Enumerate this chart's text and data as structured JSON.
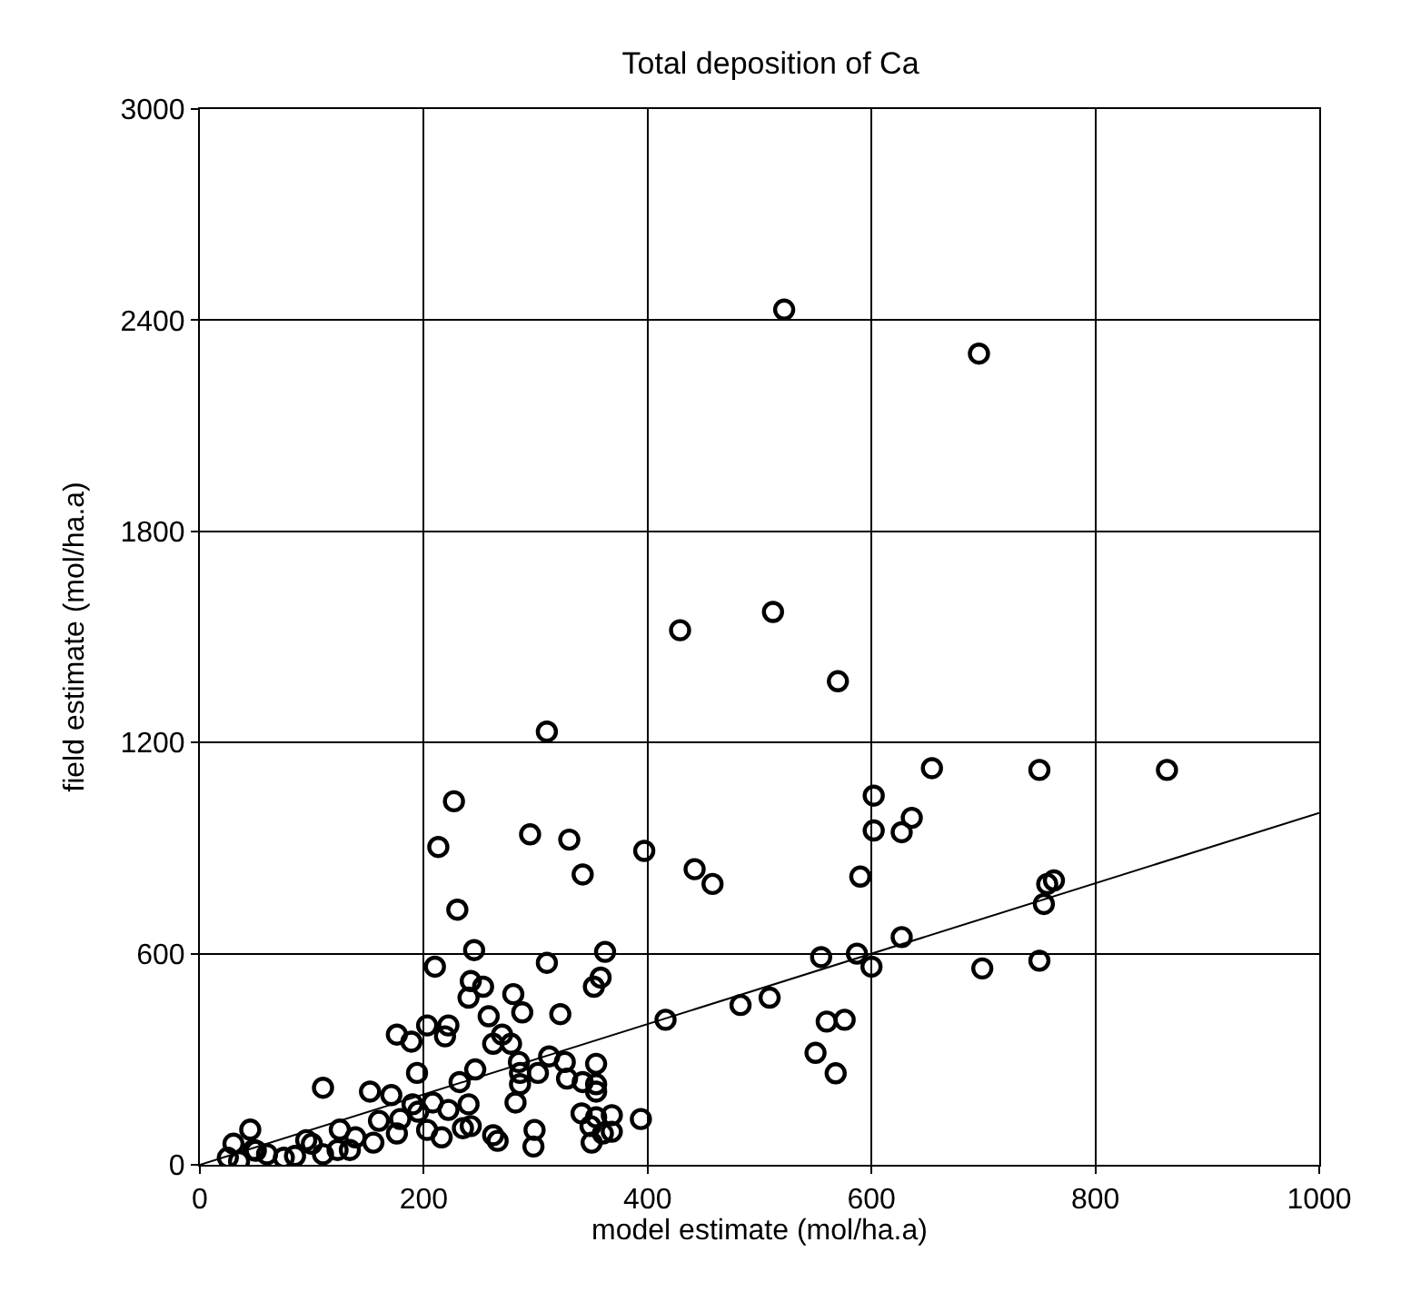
{
  "chart_data": {
    "type": "scatter",
    "title": "Total deposition of Ca",
    "xlabel": "model estimate (mol/ha.a)",
    "ylabel": "field estimate (mol/ha.a)",
    "xlim": [
      0,
      1000
    ],
    "xticks": [
      0,
      200,
      400,
      600,
      800,
      1000
    ],
    "ylim": [
      0,
      3000
    ],
    "yticks": [
      0,
      600,
      1200,
      1800,
      2400,
      3000
    ],
    "grid": true,
    "marker": "circle",
    "series": [
      {
        "color": "#000000",
        "x": [
          522,
          696,
          429,
          512,
          570,
          310,
          654,
          750,
          864,
          602,
          636,
          627,
          602,
          590,
          458,
          757,
          763,
          754,
          627,
          555,
          587,
          600,
          699,
          750,
          483,
          509,
          560,
          576,
          550,
          568,
          295,
          330,
          342,
          397,
          442,
          245,
          362,
          310,
          358,
          352,
          416,
          322,
          253,
          280,
          288,
          258,
          262,
          270,
          278,
          246,
          285,
          286,
          286,
          302,
          312,
          326,
          328,
          354,
          354,
          354,
          342,
          282,
          341,
          354,
          368,
          349,
          394,
          299,
          350,
          360,
          368,
          242,
          262,
          266,
          298,
          227,
          213,
          230,
          210,
          242,
          240,
          176,
          189,
          203,
          222,
          219,
          194,
          232,
          110,
          152,
          171,
          190,
          208,
          222,
          240,
          160,
          179,
          195,
          139,
          155,
          176,
          203,
          216,
          235,
          48,
          123,
          134,
          25,
          30,
          35,
          45,
          50,
          60,
          75,
          85,
          95,
          100,
          110,
          125
        ],
        "values": [
          2430,
          2305,
          1519,
          1571,
          1374,
          1231,
          1127,
          1122,
          1122,
          1049,
          986,
          945,
          950,
          819,
          798,
          798,
          808,
          741,
          647,
          590,
          600,
          563,
          558,
          580,
          454,
          475,
          407,
          412,
          318,
          260,
          939,
          924,
          825,
          892,
          840,
          610,
          605,
          574,
          532,
          506,
          412,
          428,
          506,
          485,
          433,
          422,
          344,
          370,
          344,
          271,
          292,
          261,
          229,
          261,
          308,
          292,
          245,
          287,
          229,
          208,
          235,
          177,
          146,
          135,
          141,
          110,
          130,
          99,
          63,
          89,
          94,
          110,
          84,
          68,
          52,
          1033,
          903,
          725,
          563,
          522,
          475,
          370,
          350,
          396,
          396,
          365,
          261,
          235,
          219,
          208,
          198,
          172,
          177,
          156,
          172,
          125,
          130,
          151,
          78,
          63,
          89,
          99,
          78,
          104,
          42,
          42,
          42,
          20,
          60,
          10,
          100,
          40,
          30,
          20,
          25,
          70,
          60,
          30,
          100
        ]
      },
      {
        "type": "line",
        "color": "#000000",
        "x": [
          0,
          1000
        ],
        "values": [
          0,
          1000
        ],
        "line_style": "solid",
        "marker": "none"
      }
    ]
  }
}
